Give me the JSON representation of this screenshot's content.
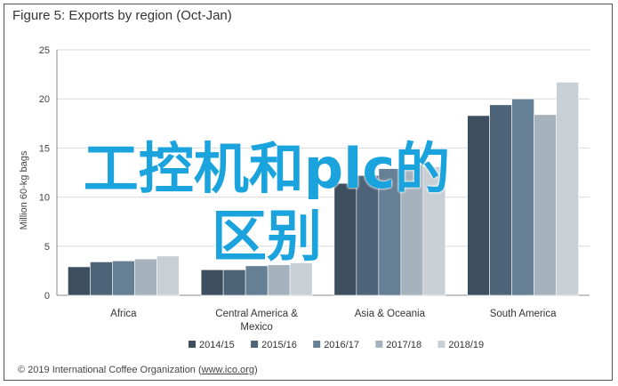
{
  "chart_data": {
    "type": "bar",
    "title": "Figure 5: Exports by region (Oct-Jan)",
    "ylabel": "Million 60-kg bags",
    "xlabel": "",
    "ylim": [
      0,
      25
    ],
    "yticks": [
      0,
      5,
      10,
      15,
      20,
      25
    ],
    "grid": true,
    "legend_position": "bottom",
    "categories": [
      [
        "Africa"
      ],
      [
        "Central America &",
        "Mexico"
      ],
      [
        "Asia & Oceania"
      ],
      [
        "South America"
      ]
    ],
    "series": [
      {
        "name": "2014/15",
        "color": "#3d4f5f",
        "values": [
          2.9,
          2.6,
          11.4,
          18.3
        ]
      },
      {
        "name": "2015/16",
        "color": "#4d6478",
        "values": [
          3.4,
          2.6,
          12.2,
          19.4
        ]
      },
      {
        "name": "2016/17",
        "color": "#657f94",
        "values": [
          3.5,
          3.0,
          12.9,
          20.0
        ]
      },
      {
        "name": "2017/18",
        "color": "#a6b3bd",
        "values": [
          3.7,
          3.1,
          13.4,
          18.4
        ]
      },
      {
        "name": "2018/19",
        "color": "#c8d0d6",
        "values": [
          4.0,
          3.3,
          13.1,
          21.7
        ]
      }
    ],
    "source": "© 2019 International Coffee Organization (",
    "source_link": "www.ico.org",
    "source_close": ")"
  },
  "overlay": {
    "line1": "工控机和plc的",
    "line2": "区别",
    "color": "#1aa3dd"
  }
}
